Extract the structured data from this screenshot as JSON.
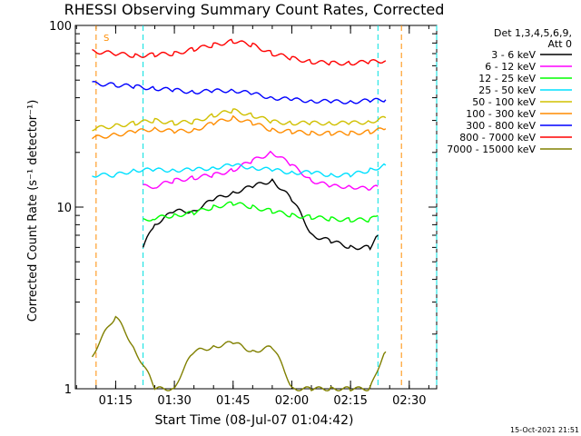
{
  "chart_data": {
    "type": "line",
    "title": "RHESSI Observing Summary Count Rates, Corrected",
    "ylabel": "Corrected Count Rate (s⁻¹ detector⁻¹)",
    "xlabel": "Start Time (08-Jul-07 01:04:42)",
    "x_ticks": [
      "01:15",
      "01:30",
      "01:45",
      "02:00",
      "02:15",
      "02:30"
    ],
    "y_ticks": [
      "1",
      "10",
      "100"
    ],
    "y_scale": "log",
    "ylim": [
      1,
      100
    ],
    "xlim": [
      "01:04:42",
      "02:37"
    ],
    "legend_header": [
      "Det 1,3,4,5,6,9,",
      "Att 0"
    ],
    "footer_date": "15-Oct-2021 21:51",
    "s_marker": "S",
    "vlines": [
      {
        "time": "01:10",
        "color": "#ff8c00"
      },
      {
        "time": "01:22",
        "color": "#00e0e0"
      },
      {
        "time": "02:22",
        "color": "#00e0e0"
      },
      {
        "time": "02:28",
        "color": "#ff8c00"
      },
      {
        "time": "02:37",
        "color": "#00e0e0"
      }
    ],
    "series": [
      {
        "name": "3 - 6 keV",
        "color": "#000000",
        "times": [
          "01:22",
          "01:25",
          "01:30",
          "01:35",
          "01:40",
          "01:45",
          "01:50",
          "01:55",
          "02:00",
          "02:05",
          "02:10",
          "02:15",
          "02:20",
          "02:22"
        ],
        "values": [
          6,
          8,
          9.5,
          9.5,
          11,
          12,
          13,
          14,
          11,
          7,
          6.5,
          6,
          6,
          7
        ]
      },
      {
        "name": "6 - 12 keV",
        "color": "#ff00ff",
        "times": [
          "01:22",
          "01:25",
          "01:30",
          "01:35",
          "01:40",
          "01:45",
          "01:50",
          "01:55",
          "02:00",
          "02:05",
          "02:10",
          "02:15",
          "02:20",
          "02:22"
        ],
        "values": [
          13,
          13,
          14,
          14.5,
          15,
          16,
          18,
          20,
          17,
          14,
          13,
          13,
          12.5,
          13
        ]
      },
      {
        "name": "12 - 25 keV",
        "color": "#00ff00",
        "times": [
          "01:22",
          "01:25",
          "01:30",
          "01:35",
          "01:40",
          "01:45",
          "01:50",
          "01:55",
          "02:00",
          "02:05",
          "02:10",
          "02:15",
          "02:20",
          "02:22"
        ],
        "values": [
          8.5,
          8.7,
          9,
          9.3,
          10,
          10.5,
          10,
          9.5,
          9,
          8.8,
          8.6,
          8.5,
          8.5,
          9
        ]
      },
      {
        "name": "25 - 50 keV",
        "color": "#00e0ff",
        "times": [
          "01:09",
          "01:15",
          "01:20",
          "01:25",
          "01:30",
          "01:35",
          "01:40",
          "01:45",
          "01:50",
          "01:55",
          "02:00",
          "02:05",
          "02:10",
          "02:15",
          "02:20",
          "02:24"
        ],
        "values": [
          15,
          15,
          16,
          16,
          16,
          16,
          16.5,
          17,
          16.5,
          16,
          15.5,
          15.5,
          15,
          15,
          16,
          17
        ]
      },
      {
        "name": "50 - 100 keV",
        "color": "#d0c000",
        "times": [
          "01:09",
          "01:15",
          "01:20",
          "01:25",
          "01:30",
          "01:35",
          "01:40",
          "01:45",
          "01:50",
          "01:55",
          "02:00",
          "02:05",
          "02:10",
          "02:15",
          "02:20",
          "02:24"
        ],
        "values": [
          27,
          28,
          29,
          30,
          29,
          29.5,
          32,
          34,
          32,
          29.5,
          29,
          29,
          29,
          29,
          29.5,
          31
        ]
      },
      {
        "name": "100 - 300 keV",
        "color": "#ff8c00",
        "times": [
          "01:09",
          "01:15",
          "01:20",
          "01:25",
          "01:30",
          "01:35",
          "01:40",
          "01:45",
          "01:50",
          "01:55",
          "02:00",
          "02:05",
          "02:10",
          "02:15",
          "02:20",
          "02:24"
        ],
        "values": [
          24,
          25,
          26,
          27,
          26,
          26.5,
          29,
          31,
          29,
          26.5,
          26,
          25.5,
          25.5,
          25.5,
          26,
          27
        ]
      },
      {
        "name": "300 - 800 keV",
        "color": "#0000ff",
        "times": [
          "01:09",
          "01:15",
          "01:20",
          "01:25",
          "01:30",
          "01:35",
          "01:40",
          "01:45",
          "01:50",
          "01:55",
          "02:00",
          "02:05",
          "02:10",
          "02:15",
          "02:20",
          "02:24"
        ],
        "values": [
          48,
          47,
          46,
          45,
          44,
          43,
          43.5,
          44,
          42,
          40,
          39,
          38.5,
          38,
          38,
          38.5,
          39
        ]
      },
      {
        "name": "800 - 7000 keV",
        "color": "#ff0000",
        "times": [
          "01:09",
          "01:15",
          "01:20",
          "01:25",
          "01:30",
          "01:35",
          "01:40",
          "01:45",
          "01:50",
          "01:55",
          "02:00",
          "02:05",
          "02:10",
          "02:15",
          "02:20",
          "02:24"
        ],
        "values": [
          72,
          70,
          68,
          69,
          70,
          74,
          78,
          82,
          78,
          70,
          66,
          63,
          62,
          62,
          63,
          64
        ]
      },
      {
        "name": "7000 - 15000 keV",
        "color": "#808000",
        "times": [
          "01:09",
          "01:15",
          "01:20",
          "01:25",
          "01:30",
          "01:35",
          "01:40",
          "01:45",
          "01:50",
          "01:55",
          "02:00",
          "02:05",
          "02:10",
          "02:15",
          "02:20",
          "02:24"
        ],
        "values": [
          1.5,
          2.5,
          1.6,
          1,
          1,
          1.6,
          1.7,
          1.8,
          1.6,
          1.7,
          1,
          1,
          1,
          1,
          1,
          1.6
        ]
      }
    ]
  }
}
